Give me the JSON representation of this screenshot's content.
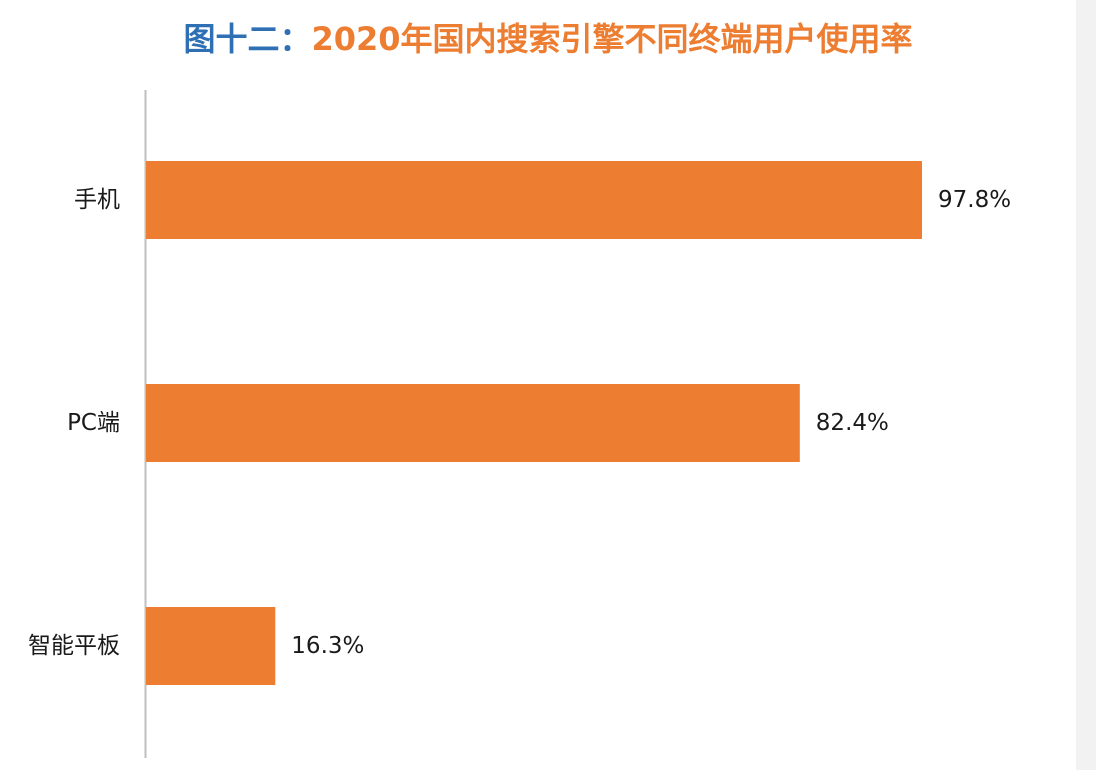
{
  "title": {
    "prefix": "图十二：",
    "text": "2020年国内搜索引擎不同终端用户使用率"
  },
  "colors": {
    "bar": "#ed7d31",
    "title_prefix": "#2f6fb4",
    "title_text": "#ed7d31",
    "axis": "#bfbfbf"
  },
  "chart_data": {
    "type": "bar",
    "orientation": "horizontal",
    "title": "图十二：2020年国内搜索引擎不同终端用户使用率",
    "categories": [
      "手机",
      "PC端",
      "智能平板"
    ],
    "values": [
      97.8,
      82.4,
      16.3
    ],
    "value_labels": [
      "97.8%",
      "82.4%",
      "16.3%"
    ],
    "unit": "%",
    "xlim": [
      0,
      100
    ],
    "grid": false,
    "legend": "none"
  }
}
